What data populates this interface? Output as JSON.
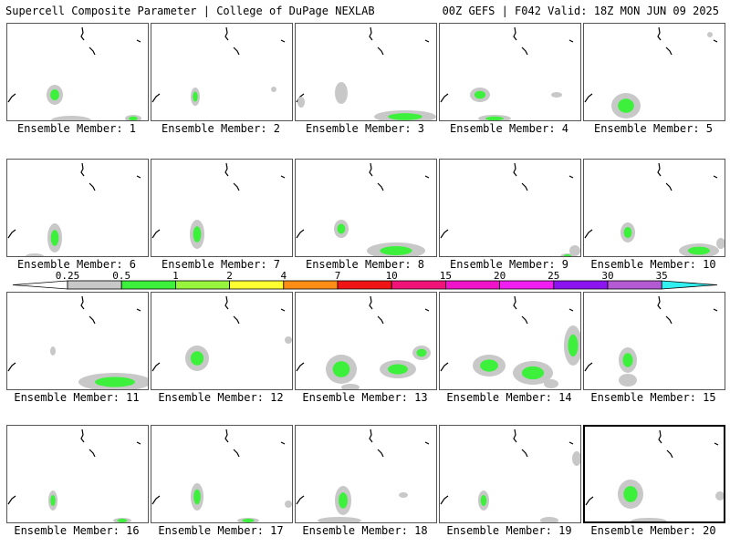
{
  "header": {
    "left": "Supercell Composite Parameter | College of DuPage NEXLAB",
    "right": "00Z GEFS | F042 Valid: 18Z MON JUN 09 2025"
  },
  "caption_prefix": "Ensemble Member: ",
  "selected_member": 20,
  "colorbar": {
    "labels": [
      "0.25",
      "0.5",
      "1",
      "2",
      "4",
      "7",
      "10",
      "15",
      "20",
      "25",
      "30",
      "35"
    ],
    "colors": [
      "#ffffff",
      "#c8c8c8",
      "#3cf03c",
      "#96f53c",
      "#ffff32",
      "#ff8c14",
      "#f01414",
      "#f01478",
      "#f014c8",
      "#f01ef0",
      "#8c14f0",
      "#b45ad2",
      "#32f0f0"
    ]
  },
  "members": [
    {
      "id": 1,
      "blobs": [
        {
          "x": 52,
          "y": 78,
          "rx": 9,
          "ry": 11,
          "g": true
        },
        {
          "x": 70,
          "y": 106,
          "rx": 22,
          "ry": 5,
          "g": false
        },
        {
          "x": 138,
          "y": 104,
          "rx": 9,
          "ry": 4,
          "g": true
        }
      ]
    },
    {
      "id": 2,
      "blobs": [
        {
          "x": 48,
          "y": 80,
          "rx": 5,
          "ry": 10,
          "g": true
        },
        {
          "x": 134,
          "y": 72,
          "rx": 3,
          "ry": 3,
          "g": false
        }
      ]
    },
    {
      "id": 3,
      "blobs": [
        {
          "x": 50,
          "y": 76,
          "rx": 7,
          "ry": 12,
          "g": false
        },
        {
          "x": 120,
          "y": 102,
          "rx": 34,
          "ry": 7,
          "g": true
        },
        {
          "x": 6,
          "y": 86,
          "rx": 4,
          "ry": 6,
          "g": false
        }
      ]
    },
    {
      "id": 4,
      "blobs": [
        {
          "x": 44,
          "y": 78,
          "rx": 11,
          "ry": 8,
          "g": true
        },
        {
          "x": 60,
          "y": 104,
          "rx": 18,
          "ry": 4,
          "g": true
        },
        {
          "x": 128,
          "y": 78,
          "rx": 6,
          "ry": 3,
          "g": false
        }
      ]
    },
    {
      "id": 5,
      "blobs": [
        {
          "x": 46,
          "y": 90,
          "rx": 16,
          "ry": 14,
          "g": true
        },
        {
          "x": 138,
          "y": 12,
          "rx": 3,
          "ry": 3,
          "g": false
        }
      ]
    },
    {
      "id": 6,
      "blobs": [
        {
          "x": 52,
          "y": 86,
          "rx": 8,
          "ry": 16,
          "g": true
        },
        {
          "x": 30,
          "y": 106,
          "rx": 10,
          "ry": 3,
          "g": false
        }
      ]
    },
    {
      "id": 7,
      "blobs": [
        {
          "x": 50,
          "y": 82,
          "rx": 8,
          "ry": 16,
          "g": true
        }
      ]
    },
    {
      "id": 8,
      "blobs": [
        {
          "x": 50,
          "y": 76,
          "rx": 8,
          "ry": 10,
          "g": true
        },
        {
          "x": 110,
          "y": 100,
          "rx": 32,
          "ry": 9,
          "g": true
        }
      ]
    },
    {
      "id": 9,
      "blobs": [
        {
          "x": 148,
          "y": 100,
          "rx": 6,
          "ry": 6,
          "g": false
        },
        {
          "x": 140,
          "y": 106,
          "rx": 8,
          "ry": 3,
          "g": true
        }
      ]
    },
    {
      "id": 10,
      "blobs": [
        {
          "x": 48,
          "y": 80,
          "rx": 8,
          "ry": 11,
          "g": true
        },
        {
          "x": 126,
          "y": 100,
          "rx": 22,
          "ry": 8,
          "g": true
        },
        {
          "x": 150,
          "y": 92,
          "rx": 5,
          "ry": 6,
          "g": false
        }
      ]
    },
    {
      "id": 11,
      "blobs": [
        {
          "x": 118,
          "y": 98,
          "rx": 40,
          "ry": 10,
          "g": true
        },
        {
          "x": 50,
          "y": 64,
          "rx": 3,
          "ry": 5,
          "g": false
        }
      ]
    },
    {
      "id": 12,
      "blobs": [
        {
          "x": 50,
          "y": 72,
          "rx": 13,
          "ry": 14,
          "g": true
        },
        {
          "x": 150,
          "y": 52,
          "rx": 4,
          "ry": 4,
          "g": false
        }
      ]
    },
    {
      "id": 13,
      "blobs": [
        {
          "x": 50,
          "y": 84,
          "rx": 17,
          "ry": 16,
          "g": true
        },
        {
          "x": 112,
          "y": 84,
          "rx": 20,
          "ry": 10,
          "g": true
        },
        {
          "x": 138,
          "y": 66,
          "rx": 10,
          "ry": 8,
          "g": true
        },
        {
          "x": 60,
          "y": 104,
          "rx": 10,
          "ry": 4,
          "g": false
        }
      ]
    },
    {
      "id": 14,
      "blobs": [
        {
          "x": 54,
          "y": 80,
          "rx": 18,
          "ry": 12,
          "g": true
        },
        {
          "x": 102,
          "y": 88,
          "rx": 22,
          "ry": 13,
          "g": true
        },
        {
          "x": 146,
          "y": 58,
          "rx": 10,
          "ry": 22,
          "g": true
        },
        {
          "x": 122,
          "y": 100,
          "rx": 8,
          "ry": 5,
          "g": false
        }
      ]
    },
    {
      "id": 15,
      "blobs": [
        {
          "x": 48,
          "y": 74,
          "rx": 10,
          "ry": 14,
          "g": true
        },
        {
          "x": 48,
          "y": 96,
          "rx": 10,
          "ry": 7,
          "g": false
        }
      ]
    },
    {
      "id": 16,
      "blobs": [
        {
          "x": 50,
          "y": 82,
          "rx": 5,
          "ry": 11,
          "g": true
        },
        {
          "x": 126,
          "y": 104,
          "rx": 10,
          "ry": 3,
          "g": true
        }
      ]
    },
    {
      "id": 17,
      "blobs": [
        {
          "x": 50,
          "y": 78,
          "rx": 7,
          "ry": 15,
          "g": true
        },
        {
          "x": 150,
          "y": 86,
          "rx": 4,
          "ry": 4,
          "g": false
        },
        {
          "x": 106,
          "y": 104,
          "rx": 12,
          "ry": 3,
          "g": true
        }
      ]
    },
    {
      "id": 18,
      "blobs": [
        {
          "x": 52,
          "y": 82,
          "rx": 9,
          "ry": 16,
          "g": true
        },
        {
          "x": 48,
          "y": 104,
          "rx": 24,
          "ry": 4,
          "g": false
        },
        {
          "x": 118,
          "y": 76,
          "rx": 5,
          "ry": 3,
          "g": false
        }
      ]
    },
    {
      "id": 19,
      "blobs": [
        {
          "x": 48,
          "y": 82,
          "rx": 6,
          "ry": 11,
          "g": true
        },
        {
          "x": 150,
          "y": 36,
          "rx": 5,
          "ry": 8,
          "g": false
        },
        {
          "x": 120,
          "y": 104,
          "rx": 10,
          "ry": 4,
          "g": false
        }
      ]
    },
    {
      "id": 20,
      "blobs": [
        {
          "x": 50,
          "y": 74,
          "rx": 14,
          "ry": 16,
          "g": true
        },
        {
          "x": 70,
          "y": 104,
          "rx": 20,
          "ry": 4,
          "g": false
        },
        {
          "x": 148,
          "y": 76,
          "rx": 5,
          "ry": 5,
          "g": false
        }
      ]
    }
  ]
}
